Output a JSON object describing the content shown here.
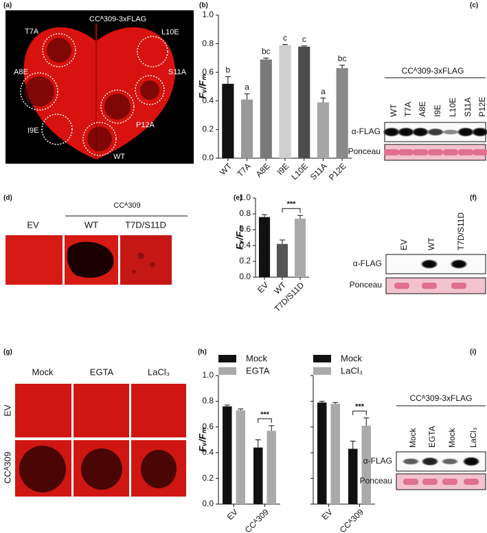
{
  "panels": [
    "(a)",
    "(b)",
    "(c)",
    "(d)",
    "(e)",
    "(f)",
    "(g)",
    "(h)",
    "(i)"
  ],
  "a": {
    "title": "CCᴬ309-3xFLAG",
    "spots": [
      "T7A",
      "L10E",
      "A8E",
      "S11A",
      "I9E",
      "P12A",
      "WT"
    ]
  },
  "c": {
    "title": "CCᴬ309-3xFLAG",
    "lanes": [
      "WT",
      "T7A",
      "A8E",
      "I9E",
      "L10E",
      "S11A",
      "P12E"
    ],
    "rows": [
      "α-FLAG",
      "Ponceau"
    ]
  },
  "d": {
    "group": "CCᴬ309",
    "labels": [
      "EV",
      "WT",
      "T7D/S11D"
    ]
  },
  "f": {
    "lanes": [
      "EV",
      "WT",
      "T7D/S11D"
    ],
    "rows": [
      "α-FLAG",
      "Ponceau"
    ]
  },
  "g": {
    "columns": [
      "Mock",
      "EGTA",
      "LaCl₃"
    ],
    "rows": [
      "EV",
      "CCᴬ309"
    ]
  },
  "i": {
    "title": "CCᴬ309-3xFLAG",
    "lanes": [
      "Mock",
      "EGTA",
      "Mock",
      "LaCl₃"
    ],
    "rows": [
      "α-FLAG",
      "Ponceau"
    ]
  },
  "chart_data": [
    {
      "type": "bar",
      "ylabel": "Fᵥ/Fₘ",
      "categories": [
        "WT",
        "T7A",
        "A8E",
        "I9E",
        "L10E",
        "S11A",
        "P12E"
      ],
      "values": [
        0.52,
        0.41,
        0.69,
        0.79,
        0.78,
        0.39,
        0.63
      ],
      "errors": [
        0.05,
        0.04,
        0.01,
        0.005,
        0.005,
        0.03,
        0.02
      ],
      "annotations": [
        "b",
        "a",
        "bc",
        "c",
        "c",
        "a",
        "bc"
      ],
      "colors": [
        "#111111",
        "#9a9a9a",
        "#7a7a7a",
        "#cfcfcf",
        "#4d4d4d",
        "#a6a6a6",
        "#8a8a8a"
      ],
      "ylim": [
        0,
        1.0
      ],
      "yticks": [
        {
          "value": 0,
          "label": "0.0"
        },
        0.2,
        0.4,
        0.6,
        0.8,
        {
          "value": 1.0,
          "label": "1.0"
        }
      ]
    },
    {
      "type": "bar",
      "ylabel": "Fᵥ/Fₘ",
      "categories": [
        "EV",
        "WT",
        "T7D/S11D"
      ],
      "values": [
        0.76,
        0.42,
        0.74
      ],
      "errors": [
        0.03,
        0.05,
        0.04
      ],
      "colors": [
        "#111111",
        "#555555",
        "#aaaaaa"
      ],
      "significance": "***",
      "ylim": [
        0,
        1.0
      ],
      "yticks": [
        {
          "value": 0,
          "label": "0.0"
        },
        0.2,
        0.4,
        0.6,
        0.8,
        {
          "value": 1.0,
          "label": "1.0"
        }
      ]
    },
    {
      "type": "grouped-bar",
      "ylabel": "Fᵥ/Fₘ",
      "categories": [
        "EV",
        "CCᴬ309"
      ],
      "series": [
        {
          "name": "Mock",
          "color": "#111111",
          "values": [
            0.76,
            0.44
          ],
          "errors": [
            0.01,
            0.06
          ]
        },
        {
          "name": "EGTA",
          "color": "#aaaaaa",
          "values": [
            0.73,
            0.57
          ],
          "errors": [
            0.01,
            0.04
          ]
        }
      ],
      "significance": "***",
      "ylim": [
        0,
        1.0
      ],
      "yticks": [
        {
          "value": 0,
          "label": "0.0"
        },
        0.2,
        0.4,
        0.6,
        0.8,
        {
          "value": 1.0,
          "label": "1.0"
        }
      ]
    },
    {
      "type": "grouped-bar",
      "categories": [
        "EV",
        "CCᴬ309"
      ],
      "series": [
        {
          "name": "Mock",
          "color": "#111111",
          "values": [
            0.79,
            0.43
          ],
          "errors": [
            0.01,
            0.06
          ]
        },
        {
          "name": "LaCl₃",
          "color": "#aaaaaa",
          "values": [
            0.78,
            0.61
          ],
          "errors": [
            0.01,
            0.06
          ]
        }
      ],
      "significance": "***",
      "ylim": [
        0,
        1.0
      ],
      "yticks": [
        0,
        0.2,
        0.4,
        0.6,
        0.8,
        1.0
      ],
      "ytick_labels": false
    }
  ]
}
